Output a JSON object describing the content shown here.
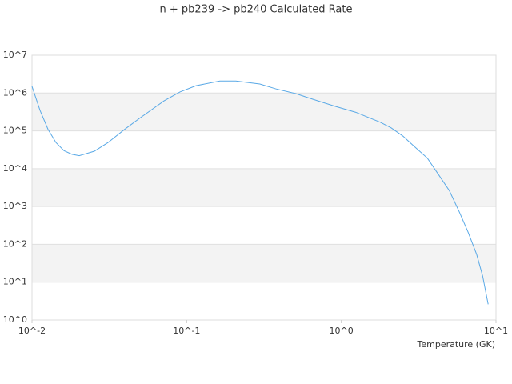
{
  "chart_data": {
    "type": "line",
    "title": "n + pb239 -> pb240 Calculated Rate",
    "x_label": "Temperature (GK)",
    "x": [
      0.01,
      0.01126,
      0.01269,
      0.01429,
      0.0161,
      0.01813,
      0.0202,
      0.0253,
      0.031,
      0.0394,
      0.05,
      0.0714,
      0.0905,
      0.115,
      0.164,
      0.208,
      0.297,
      0.377,
      0.51,
      0.65,
      0.92,
      1.24,
      1.48,
      1.78,
      2.1,
      2.5,
      3.0,
      3.6,
      4.3,
      5.0,
      5.8,
      6.6,
      7.5,
      8.2,
      8.9
    ],
    "series": [
      {
        "name": "n + pb239 -> pb240",
        "color": "#5aa9e6",
        "values": [
          1500000,
          350000,
          110000,
          49000,
          30000,
          24000,
          22000,
          29000,
          49000,
          107000,
          220000,
          620000,
          1070000,
          1560000,
          2080000,
          2080000,
          1730000,
          1290000,
          960000,
          690000,
          440000,
          310000,
          230000,
          170000,
          120000,
          73000,
          37000,
          19000,
          6500,
          2600,
          710,
          210,
          54,
          14.5,
          2.6
        ]
      }
    ],
    "xscale": "log",
    "yscale": "log",
    "xlim": [
      0.01,
      10
    ],
    "ylim": [
      1,
      10000000
    ],
    "xticks": [
      {
        "value": 0.01,
        "label": "10^-2"
      },
      {
        "value": 0.1,
        "label": "10^-1"
      },
      {
        "value": 1,
        "label": "10^0"
      },
      {
        "value": 10,
        "label": "10^1"
      }
    ],
    "yticks": [
      {
        "value": 1,
        "label": "10^0"
      },
      {
        "value": 10,
        "label": "10^1"
      },
      {
        "value": 100,
        "label": "10^2"
      },
      {
        "value": 1000,
        "label": "10^3"
      },
      {
        "value": 10000,
        "label": "10^4"
      },
      {
        "value": 100000,
        "label": "10^5"
      },
      {
        "value": 1000000,
        "label": "10^6"
      },
      {
        "value": 10000000,
        "label": "10^7"
      }
    ],
    "grid": true
  }
}
